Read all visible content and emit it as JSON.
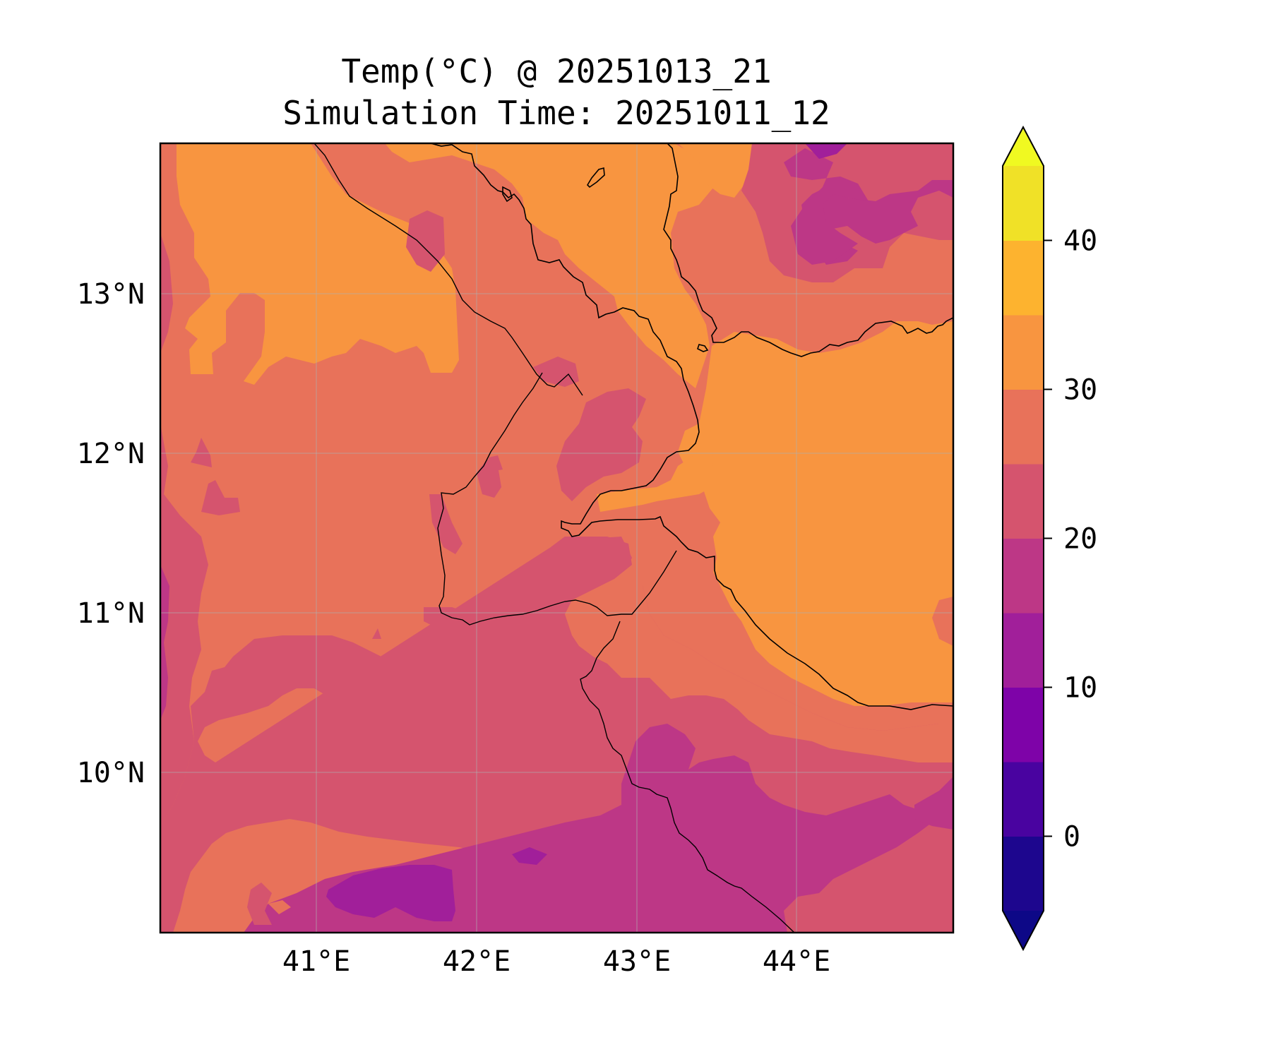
{
  "title": {
    "line1": "Temp(°C) @ 20251013_21",
    "line2": "Simulation Time: 20251011_12"
  },
  "map": {
    "type": "filled-contour",
    "variable": "Temp(°C)",
    "lon_range": [
      40.0,
      45.0
    ],
    "lat_range": [
      9.0,
      13.9
    ],
    "x_ticks": [
      {
        "value": 41,
        "label": "41°E"
      },
      {
        "value": 42,
        "label": "42°E"
      },
      {
        "value": 43,
        "label": "43°E"
      },
      {
        "value": 44,
        "label": "44°E"
      }
    ],
    "y_ticks": [
      {
        "value": 13,
        "label": "13°N"
      },
      {
        "value": 12,
        "label": "12°N"
      },
      {
        "value": 11,
        "label": "11°N"
      },
      {
        "value": 10,
        "label": "10°N"
      }
    ],
    "gridlines": true,
    "coastlines": true,
    "borders": true,
    "colors": {
      "band_15_20": "#bd3786",
      "band_20_25": "#d5546e",
      "band_25_30": "#e8725a",
      "band_30_35": "#f89540",
      "band_10_15": "#a11f9a"
    }
  },
  "colorbar": {
    "cmap": "plasma",
    "extend": "both",
    "levels": [
      -5,
      0,
      5,
      10,
      15,
      20,
      25,
      30,
      35,
      40,
      45
    ],
    "tick_labels": [
      "0",
      "10",
      "20",
      "30",
      "40"
    ],
    "tick_values": [
      0,
      10,
      20,
      30,
      40
    ],
    "colors": [
      "#1d068e",
      "#4903a0",
      "#7e03a8",
      "#a11f9a",
      "#bd3786",
      "#d5546e",
      "#e8725a",
      "#f89540",
      "#fdb32f",
      "#f0e127"
    ],
    "under_color": "#0d0887",
    "over_color": "#f0f921"
  }
}
